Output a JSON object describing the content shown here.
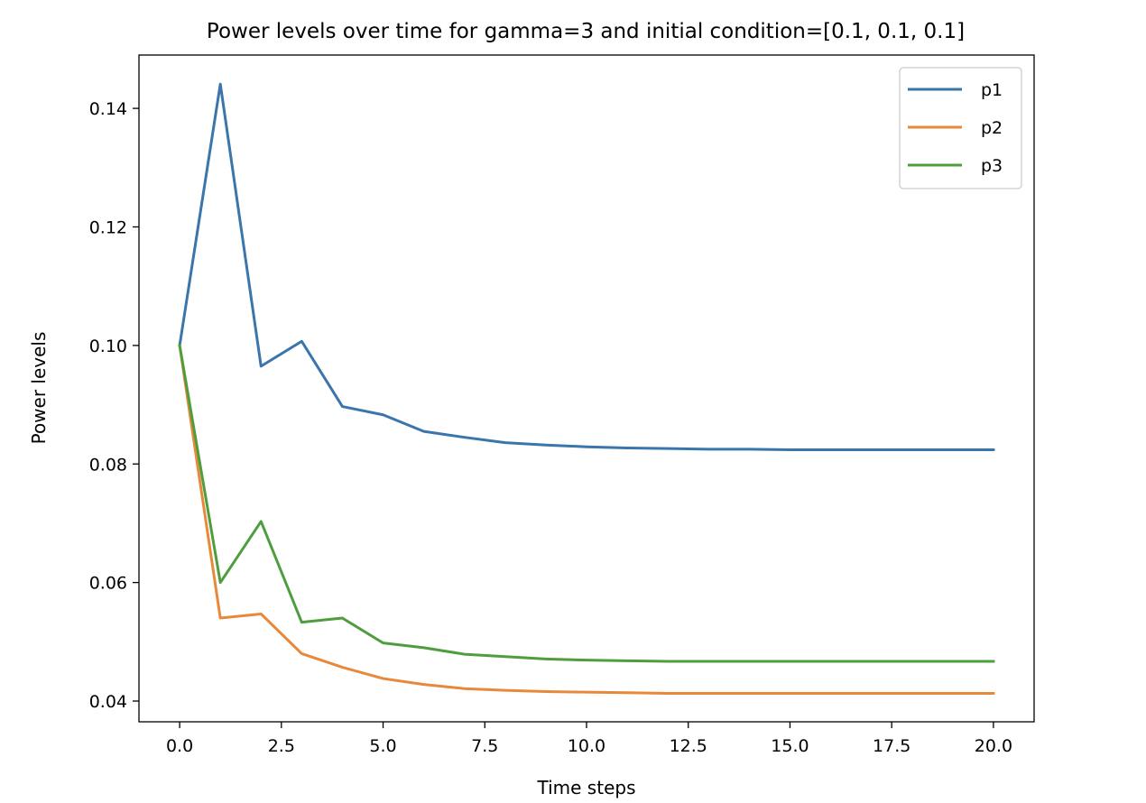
{
  "chart_data": {
    "type": "line",
    "title": "Power levels over time for gamma=3 and initial condition=[0.1, 0.1, 0.1]",
    "xlabel": "Time steps",
    "ylabel": "Power levels",
    "xlim": [
      -1,
      21
    ],
    "ylim": [
      0.0365,
      0.149
    ],
    "xticks": [
      0.0,
      2.5,
      5.0,
      7.5,
      10.0,
      12.5,
      15.0,
      17.5,
      20.0
    ],
    "xtick_labels": [
      "0.0",
      "2.5",
      "5.0",
      "7.5",
      "10.0",
      "12.5",
      "15.0",
      "17.5",
      "20.0"
    ],
    "yticks": [
      0.04,
      0.06,
      0.08,
      0.1,
      0.12,
      0.14
    ],
    "ytick_labels": [
      "0.04",
      "0.06",
      "0.08",
      "0.10",
      "0.12",
      "0.14"
    ],
    "grid": false,
    "legend_position": "top-right",
    "x": [
      0,
      1,
      2,
      3,
      4,
      5,
      6,
      7,
      8,
      9,
      10,
      11,
      12,
      13,
      14,
      15,
      16,
      17,
      18,
      19,
      20
    ],
    "series": [
      {
        "name": "p1",
        "color": "#3a75ac",
        "values": [
          0.1,
          0.1441,
          0.0965,
          0.1007,
          0.0897,
          0.0883,
          0.0855,
          0.0845,
          0.0836,
          0.0832,
          0.0829,
          0.0827,
          0.0826,
          0.0825,
          0.0825,
          0.0824,
          0.0824,
          0.0824,
          0.0824,
          0.0824,
          0.0824
        ]
      },
      {
        "name": "p2",
        "color": "#e8883a",
        "values": [
          0.1,
          0.054,
          0.0547,
          0.048,
          0.0457,
          0.0438,
          0.0428,
          0.0421,
          0.0418,
          0.0416,
          0.0415,
          0.0414,
          0.0413,
          0.0413,
          0.0413,
          0.0413,
          0.0413,
          0.0413,
          0.0413,
          0.0413,
          0.0413
        ]
      },
      {
        "name": "p3",
        "color": "#4f9e3e",
        "values": [
          0.1,
          0.06,
          0.0703,
          0.0533,
          0.054,
          0.0498,
          0.049,
          0.0479,
          0.0475,
          0.0471,
          0.0469,
          0.0468,
          0.0467,
          0.0467,
          0.0467,
          0.0467,
          0.0467,
          0.0467,
          0.0467,
          0.0467,
          0.0467
        ]
      }
    ]
  }
}
